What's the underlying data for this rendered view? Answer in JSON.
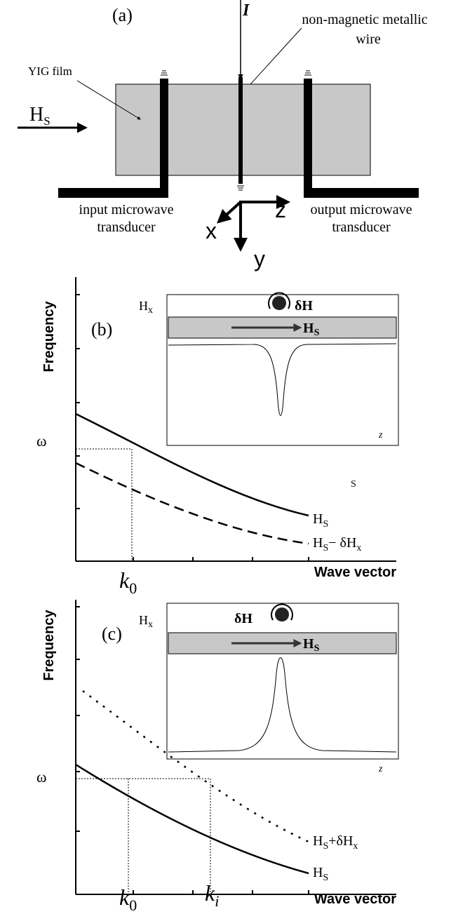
{
  "panel_a": {
    "label": "(a)",
    "current": "I",
    "wire_label": [
      "non-magnetic metallic",
      "wire"
    ],
    "film_label": "YIG film",
    "field": {
      "main": "H",
      "sub": "S"
    },
    "input_label": [
      "input microwave",
      "transducer"
    ],
    "output_label": [
      "output microwave",
      "transducer"
    ],
    "axes": {
      "x": "x",
      "y": "y",
      "z": "z"
    }
  },
  "panel_b": {
    "label": "(b)",
    "y_axis": "Frequency",
    "x_axis": "Wave vector",
    "omega": "ω",
    "k0": {
      "main": "k",
      "sub": "0"
    },
    "inset": {
      "hx": {
        "main": "H",
        "sub": "x"
      },
      "dh": "δH",
      "hs": {
        "main": "H",
        "sub": "S"
      },
      "z": "z"
    },
    "stray": "S",
    "curve_upper": {
      "main": "H",
      "sub": "S"
    },
    "curve_lower": {
      "main": "H",
      "sub": "S",
      "rest": "− δH",
      "sub2": "x"
    }
  },
  "panel_c": {
    "label": "(c)",
    "y_axis": "Frequency",
    "x_axis": "Wave vector",
    "omega": "ω",
    "k0": {
      "main": "k",
      "sub": "0"
    },
    "ki": {
      "main": "k",
      "sub": "i"
    },
    "inset": {
      "hx": {
        "main": "H",
        "sub": "x"
      },
      "dh": "δH",
      "hs": {
        "main": "H",
        "sub": "S"
      },
      "z": "z"
    },
    "curve_upper": {
      "main": "H",
      "sub": "S",
      "rest": "+δH",
      "sub2": "x"
    },
    "curve_lower": {
      "main": "H",
      "sub": "S"
    }
  }
}
